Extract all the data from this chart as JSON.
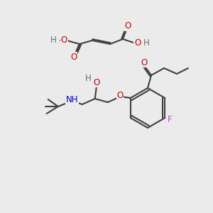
{
  "bg_color": "#ebebeb",
  "atom_colors": {
    "C": "#404040",
    "O": "#cc0000",
    "N": "#0000cc",
    "F": "#cc44cc",
    "H": "#607070"
  },
  "bond_color": "#404040",
  "bond_lw": 1.5,
  "font_size": 8.5
}
